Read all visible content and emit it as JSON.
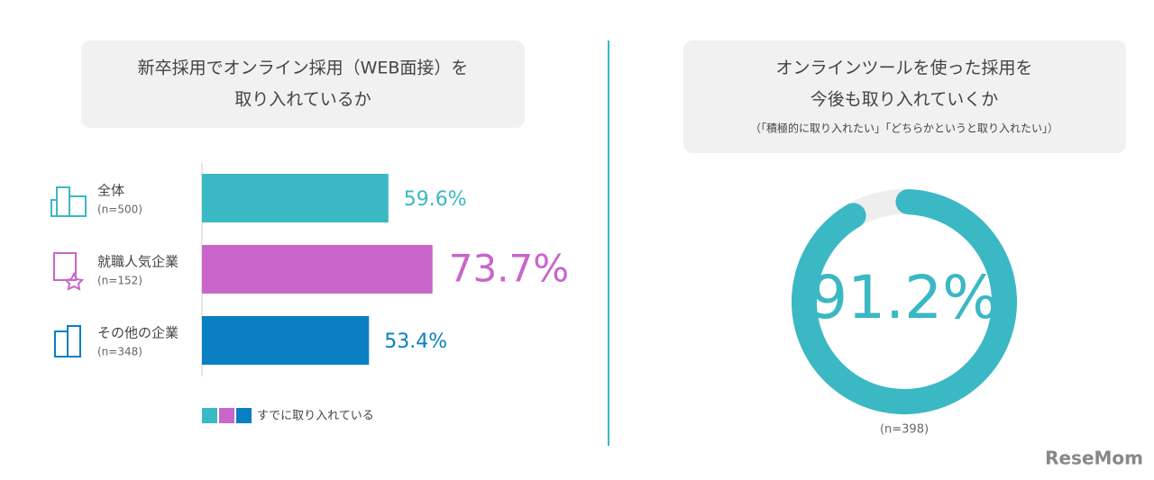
{
  "chart_data": [
    {
      "type": "bar",
      "title": [
        "新卒採用でオンライン採用（WEB面接）を",
        "取り入れているか"
      ],
      "categories": [
        "全体",
        "就職人気企業",
        "その他の企業"
      ],
      "subcategories": [
        "(n=500)",
        "(n=152)",
        "(n=348)"
      ],
      "values": [
        59.6,
        73.7,
        53.4
      ],
      "value_labels": [
        "59.6%",
        "73.7%",
        "53.4%"
      ],
      "colors": [
        "#3ab8c4",
        "#c965cb",
        "#0a7fc2"
      ],
      "xlim": [
        0,
        100
      ],
      "legend": "すでに取り入れている"
    },
    {
      "type": "donut",
      "title": [
        "オンラインツールを使った採用を",
        "今後も取り入れていくか"
      ],
      "subtitle": "（「積極的に取り入れたい」「どちらかというと取り入れたい」）",
      "values": [
        91.2
      ],
      "value_labels": [
        "91.2%"
      ],
      "color": "#3ab8c4",
      "note": "(n=398)"
    }
  ],
  "watermark": "ReseMom"
}
